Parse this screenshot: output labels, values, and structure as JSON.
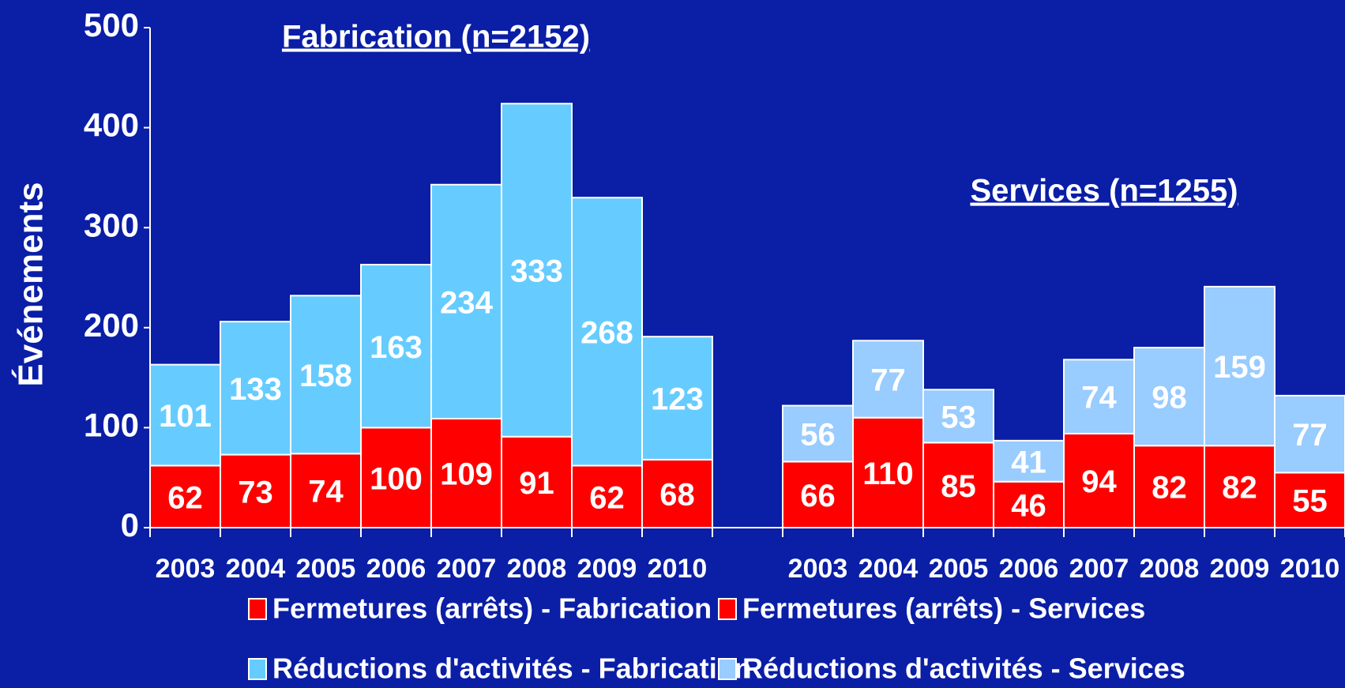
{
  "chart_data": {
    "type": "stacked_bar",
    "y_label": "Événements",
    "annotations": [
      "Fabrication (n=2152)",
      "Services (n=1255)"
    ],
    "categories": [
      "2003",
      "2004",
      "2005",
      "2006",
      "2007",
      "2008",
      "2009",
      "2010",
      null,
      "2003",
      "2004",
      "2005",
      "2006",
      "2007",
      "2008",
      "2009",
      "2010"
    ],
    "series": [
      {
        "name": "Fermetures (arrêts) - Fabrication",
        "color": "#ff0000",
        "values": [
          62,
          73,
          74,
          100,
          109,
          91,
          62,
          68,
          null,
          null,
          null,
          null,
          null,
          null,
          null,
          null,
          null
        ]
      },
      {
        "name": "Fermetures (arrêts) - Services",
        "color": "#ff0000",
        "values": [
          null,
          null,
          null,
          null,
          null,
          null,
          null,
          null,
          null,
          66,
          110,
          85,
          46,
          94,
          82,
          82,
          55
        ]
      },
      {
        "name": "Réductions d'activités - Fabrication",
        "color": "#66ccff",
        "values": [
          101,
          133,
          158,
          163,
          234,
          333,
          268,
          123,
          null,
          null,
          null,
          null,
          null,
          null,
          null,
          null,
          null
        ]
      },
      {
        "name": "Réductions d'activités - Services",
        "color": "#99ccff",
        "values": [
          null,
          null,
          null,
          null,
          null,
          null,
          null,
          null,
          null,
          56,
          77,
          53,
          41,
          74,
          98,
          159,
          77
        ]
      }
    ],
    "ylim": [
      0,
      500
    ],
    "yticks": [
      0,
      100,
      200,
      300,
      400,
      500
    ]
  }
}
